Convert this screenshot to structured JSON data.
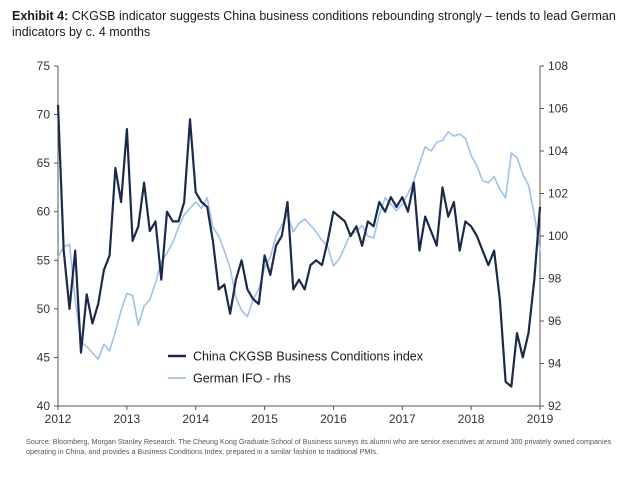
{
  "title": {
    "label": "Exhibit 4:",
    "text": "CKGSB indicator suggests China business conditions rebounding strongly – tends to lead German indicators by c. 4 months"
  },
  "source": "Source: Bloomberg, Morgan Stanley Research. The Cheung Kong Graduate School of Business surveys its alumni who are senior executives at around 300 privately owned companies operating in China, and provides a Business Conditions Index, prepared in a similar fashion to traditional PMIs.",
  "chart_data": {
    "type": "line",
    "title": "CKGSB indicator suggests China business conditions rebounding strongly – tends to lead German indicators by c. 4 months",
    "x_ticks": [
      "2012",
      "2013",
      "2014",
      "2015",
      "2016",
      "2017",
      "2018",
      "2019"
    ],
    "x_range": [
      2012.0,
      2019.0
    ],
    "y_left": {
      "range": [
        40,
        75
      ],
      "ticks": [
        40,
        45,
        50,
        55,
        60,
        65,
        70,
        75
      ]
    },
    "y_right": {
      "range": [
        92,
        108
      ],
      "ticks": [
        92,
        94,
        96,
        98,
        100,
        102,
        104,
        106,
        108
      ]
    },
    "grid": false,
    "legend": {
      "position": "bottom-center"
    },
    "colors": {
      "china": "#1b2a4a",
      "german": "#9cc3ea"
    },
    "series": [
      {
        "name": "China CKGSB Business Conditions index",
        "axis": "left",
        "color": "#1b2a4a",
        "x": [
          "2012-01",
          "2012-02",
          "2012-03",
          "2012-04",
          "2012-05",
          "2012-06",
          "2012-07",
          "2012-08",
          "2012-09",
          "2012-10",
          "2012-11",
          "2012-12",
          "2013-01",
          "2013-02",
          "2013-03",
          "2013-04",
          "2013-05",
          "2013-06",
          "2013-07",
          "2013-08",
          "2013-09",
          "2013-10",
          "2013-11",
          "2013-12",
          "2014-01",
          "2014-02",
          "2014-03",
          "2014-04",
          "2014-05",
          "2014-06",
          "2014-07",
          "2014-08",
          "2014-09",
          "2014-10",
          "2014-11",
          "2014-12",
          "2015-01",
          "2015-02",
          "2015-03",
          "2015-04",
          "2015-05",
          "2015-06",
          "2015-07",
          "2015-08",
          "2015-09",
          "2015-10",
          "2015-11",
          "2015-12",
          "2016-01",
          "2016-02",
          "2016-03",
          "2016-04",
          "2016-05",
          "2016-06",
          "2016-07",
          "2016-08",
          "2016-09",
          "2016-10",
          "2016-11",
          "2016-12",
          "2017-01",
          "2017-02",
          "2017-03",
          "2017-04",
          "2017-05",
          "2017-06",
          "2017-07",
          "2017-08",
          "2017-09",
          "2017-10",
          "2017-11",
          "2017-12",
          "2018-01",
          "2018-02",
          "2018-03",
          "2018-04",
          "2018-05",
          "2018-06",
          "2018-07",
          "2018-08",
          "2018-09",
          "2018-10",
          "2018-11",
          "2018-12",
          "2019-01"
        ],
        "values": [
          71.0,
          56.0,
          50.0,
          56.0,
          45.5,
          51.5,
          48.5,
          50.5,
          54.0,
          55.5,
          64.5,
          61.0,
          68.5,
          57.0,
          58.5,
          63.0,
          58.0,
          59.0,
          53.0,
          60.0,
          59.0,
          59.0,
          61.0,
          69.5,
          62.0,
          61.0,
          60.5,
          57.0,
          52.0,
          52.5,
          49.5,
          53.0,
          55.0,
          52.0,
          51.0,
          50.5,
          55.5,
          53.5,
          56.5,
          57.5,
          61.0,
          52.0,
          53.0,
          52.0,
          54.5,
          55.0,
          54.5,
          57.0,
          60.0,
          59.5,
          59.0,
          57.5,
          58.5,
          56.5,
          59.0,
          58.5,
          61.0,
          60.0,
          61.5,
          60.5,
          61.5,
          60.0,
          63.0,
          56.0,
          59.5,
          58.0,
          56.5,
          62.5,
          59.5,
          61.0,
          56.0,
          59.0,
          58.5,
          57.5,
          56.0,
          54.5,
          56.0,
          51.0,
          42.5,
          42.0,
          47.5,
          45.0,
          47.5,
          53.0,
          60.5
        ]
      },
      {
        "name": "German IFO - rhs",
        "axis": "right",
        "color": "#9cc3ea",
        "x": [
          "2012-01",
          "2012-02",
          "2012-03",
          "2012-04",
          "2012-05",
          "2012-06",
          "2012-07",
          "2012-08",
          "2012-09",
          "2012-10",
          "2012-11",
          "2012-12",
          "2013-01",
          "2013-02",
          "2013-03",
          "2013-04",
          "2013-05",
          "2013-06",
          "2013-07",
          "2013-08",
          "2013-09",
          "2013-10",
          "2013-11",
          "2013-12",
          "2014-01",
          "2014-02",
          "2014-03",
          "2014-04",
          "2014-05",
          "2014-06",
          "2014-07",
          "2014-08",
          "2014-09",
          "2014-10",
          "2014-11",
          "2014-12",
          "2015-01",
          "2015-02",
          "2015-03",
          "2015-04",
          "2015-05",
          "2015-06",
          "2015-07",
          "2015-08",
          "2015-09",
          "2015-10",
          "2015-11",
          "2015-12",
          "2016-01",
          "2016-02",
          "2016-03",
          "2016-04",
          "2016-05",
          "2016-06",
          "2016-07",
          "2016-08",
          "2016-09",
          "2016-10",
          "2016-11",
          "2016-12",
          "2017-01",
          "2017-02",
          "2017-03",
          "2017-04",
          "2017-05",
          "2017-06",
          "2017-07",
          "2017-08",
          "2017-09",
          "2017-10",
          "2017-11",
          "2017-12",
          "2018-01",
          "2018-02",
          "2018-03",
          "2018-04",
          "2018-05",
          "2018-06",
          "2018-07",
          "2018-08",
          "2018-09",
          "2018-10",
          "2018-11",
          "2018-12",
          "2019-01"
        ],
        "values": [
          99.0,
          99.5,
          99.6,
          97.0,
          95.0,
          94.8,
          94.5,
          94.2,
          94.9,
          94.6,
          95.5,
          96.5,
          97.3,
          97.2,
          95.8,
          96.7,
          97.0,
          97.8,
          98.8,
          99.2,
          99.7,
          100.4,
          101.0,
          101.3,
          101.6,
          101.3,
          101.8,
          100.4,
          100.0,
          99.3,
          98.5,
          97.1,
          96.5,
          96.2,
          97.0,
          97.5,
          98.5,
          99.0,
          100.0,
          100.5,
          101.0,
          100.2,
          100.6,
          100.8,
          100.5,
          100.2,
          99.8,
          99.5,
          98.6,
          98.9,
          99.5,
          100.1,
          100.2,
          100.5,
          100.0,
          99.9,
          101.0,
          101.8,
          101.5,
          101.2,
          101.5,
          102.0,
          102.6,
          103.4,
          104.2,
          104.0,
          104.4,
          104.5,
          104.9,
          104.7,
          104.8,
          104.6,
          103.8,
          103.3,
          102.6,
          102.5,
          102.8,
          102.2,
          101.8,
          103.9,
          103.7,
          102.9,
          102.4,
          101.0,
          99.3
        ]
      }
    ]
  }
}
